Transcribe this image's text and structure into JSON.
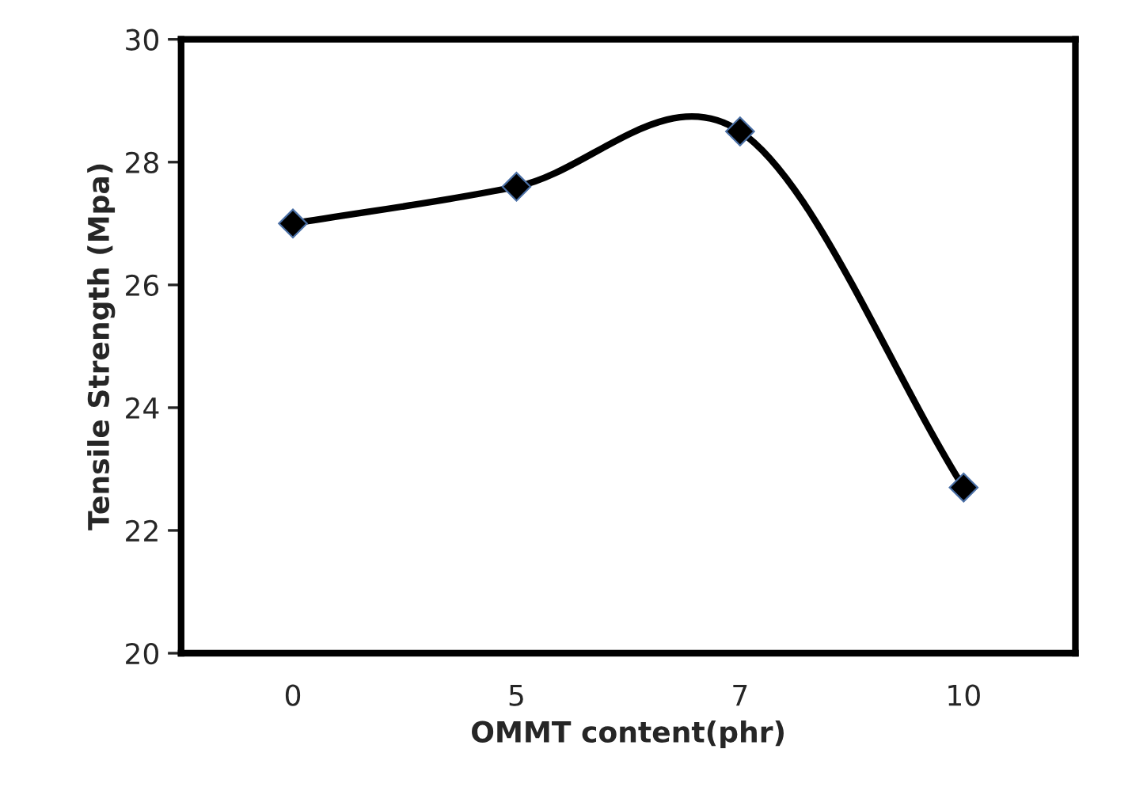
{
  "chart_data": {
    "type": "line",
    "xlabel": "OMMT content(phr)",
    "ylabel": "Tensile Strength (Mpa)",
    "categories": [
      "0",
      "5",
      "7",
      "10"
    ],
    "series": [
      {
        "color": "#000000",
        "values": [
          27.0,
          27.6,
          28.5,
          22.7
        ]
      }
    ],
    "ylim": [
      20,
      30
    ],
    "yticks": [
      20,
      22,
      24,
      26,
      28,
      30
    ],
    "marker": "diamond",
    "line_style": "solid",
    "grid": false
  }
}
